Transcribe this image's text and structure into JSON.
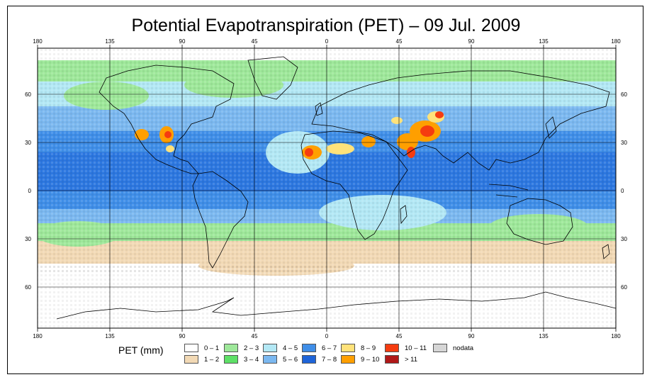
{
  "title": "Potential Evapotranspiration (PET) – 09 Jul. 2009",
  "axes": {
    "lon_ticks": [
      "180",
      "135",
      "90",
      "45",
      "0",
      "45",
      "90",
      "135",
      "180"
    ],
    "lat_ticks": [
      "60",
      "30",
      "0",
      "30",
      "60"
    ]
  },
  "legend": {
    "title": "PET (mm)",
    "items": [
      {
        "label": "0 – 1",
        "color": "#ffffff"
      },
      {
        "label": "1 – 2",
        "color": "#f2d9b5"
      },
      {
        "label": "2 – 3",
        "color": "#9ee89a"
      },
      {
        "label": "3 – 4",
        "color": "#5ee067"
      },
      {
        "label": "4 – 5",
        "color": "#b3e8f5"
      },
      {
        "label": "5 – 6",
        "color": "#7bb8f0"
      },
      {
        "label": "6 – 7",
        "color": "#3f8ee8"
      },
      {
        "label": "7 – 8",
        "color": "#1e64d8"
      },
      {
        "label": "8 – 9",
        "color": "#ffe27a"
      },
      {
        "label": "9 – 10",
        "color": "#ff9f00"
      },
      {
        "label": "10 – 11",
        "color": "#f53c10"
      },
      {
        "label": "> 11",
        "color": "#b01818"
      },
      {
        "label": "nodata",
        "color": "#d6d6d6"
      }
    ]
  },
  "colors": {
    "ocean_tropical": "#3f8ee8",
    "ocean_mid": "#7bb8f0",
    "ocean_cool": "#b3e8f5",
    "band_green": "#9ee89a",
    "band_tan": "#f2d9b5",
    "land_hot": "#ff9f00",
    "land_extreme": "#f53c10"
  }
}
